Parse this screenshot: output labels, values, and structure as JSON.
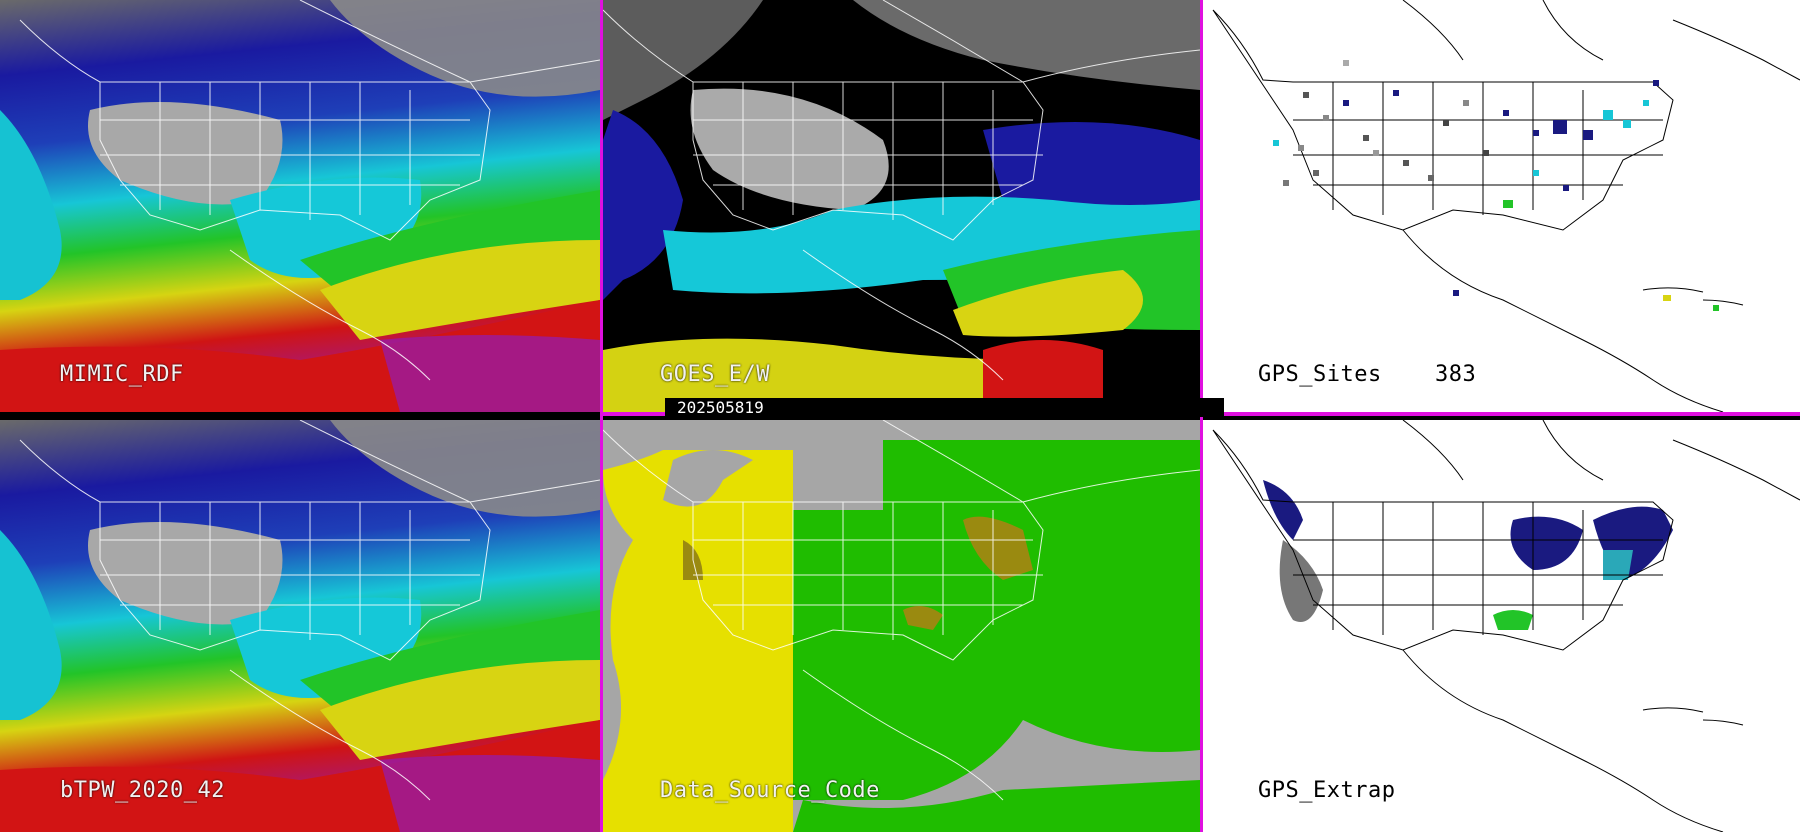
{
  "panels": [
    {
      "id": "mimic",
      "label": "MIMIC_RDF",
      "style": "moisture"
    },
    {
      "id": "goes",
      "label": "GOES_E/W",
      "style": "moisture-dark"
    },
    {
      "id": "gps_sites",
      "label": "GPS_Sites",
      "count": "383",
      "style": "white-map"
    },
    {
      "id": "btpw",
      "label": "bTPW_2020_42",
      "style": "moisture"
    },
    {
      "id": "source",
      "label": "Data_Source_Code",
      "style": "source-code"
    },
    {
      "id": "gps_extrap",
      "label": "GPS_Extrap",
      "style": "white-map"
    }
  ],
  "timestamp": "202505819",
  "colors": {
    "divider": "#e010e0",
    "moisture_scale": [
      "#9a9a9a",
      "#1c1c9e",
      "#14c8d8",
      "#20c020",
      "#e0dc10",
      "#d01414",
      "#a01aa0"
    ],
    "source_codes": [
      "#e6e000",
      "#1fbd00",
      "#a6a6a6",
      "#9a8a10"
    ]
  }
}
